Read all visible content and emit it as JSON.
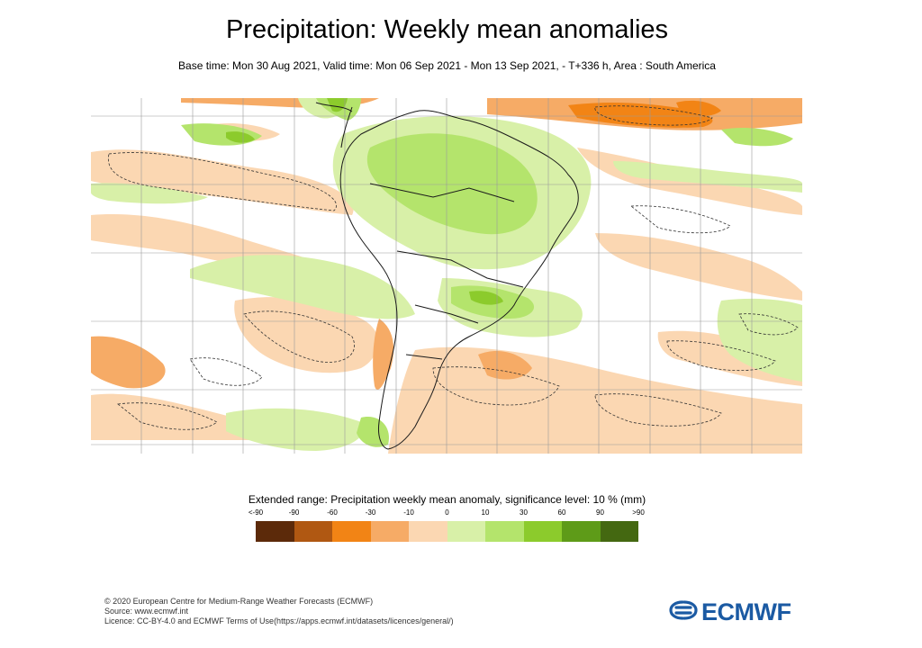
{
  "header": {
    "title": "Precipitation: Weekly mean anomalies",
    "subtitle": "Base time: Mon 30 Aug 2021, Valid time: Mon 06 Sep 2021 - Mon 13 Sep 2021, - T+336 h, Area : South America"
  },
  "legend": {
    "title": "Extended range: Precipitation weekly mean anomaly, significance level: 10 % (mm)",
    "labels": [
      "<-90",
      "-90",
      "-60",
      "-30",
      "-10",
      "0",
      "10",
      "30",
      "60",
      "90",
      ">90"
    ],
    "colors": [
      "#5c2a0a",
      "#b05812",
      "#f28415",
      "#f6ab66",
      "#fbd7b2",
      "#d8f0a8",
      "#b4e46c",
      "#8ccb2c",
      "#5e9b18",
      "#446811"
    ]
  },
  "footer": {
    "copyright": "© 2020 European Centre for Medium-Range Weather Forecasts (ECMWF)",
    "source": "Source: www.ecmwf.int",
    "licence": "Licence: CC-BY-4.0 and ECMWF Terms of Use(https://apps.ecmwf.int/datasets/licences/general/)"
  },
  "logo": {
    "text": "ECMWF",
    "color": "#1b5aa3",
    "icon": "ecmwf-logo-icon"
  },
  "map": {
    "area": "South America",
    "gridlines": true
  }
}
